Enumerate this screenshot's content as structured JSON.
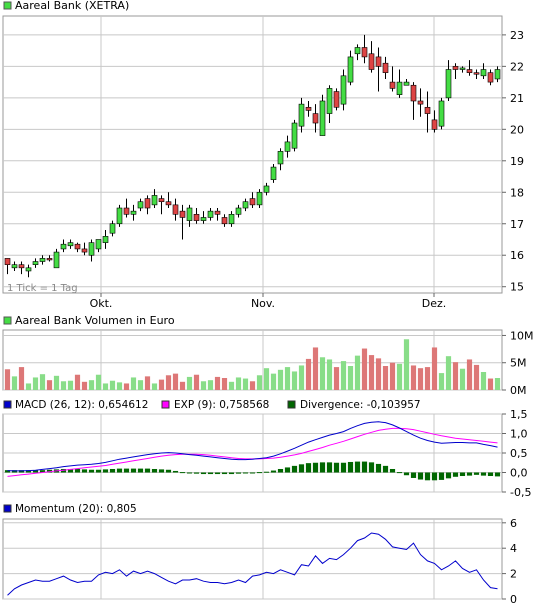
{
  "colors": {
    "up": "#44dd44",
    "down": "#dd4444",
    "grid": "#c8c8c8",
    "macd": "#0000cc",
    "signal": "#ff00ff",
    "divergence": "#006600",
    "momentum": "#0000cc"
  },
  "chart_data": [
    {
      "type": "candlestick",
      "legend": "Aareal Bank (XETRA)",
      "footnote": "1 Tick = 1 Tag",
      "ylim": [
        14.8,
        23.6
      ],
      "yticks": [
        "15",
        "16",
        "17",
        "18",
        "19",
        "20",
        "21",
        "22",
        "23"
      ],
      "xticks": [
        "Okt.",
        "Nov.",
        "Dez."
      ],
      "ohlc": [
        [
          15.9,
          15.7,
          15.9,
          15.4
        ],
        [
          15.6,
          15.7,
          15.8,
          15.5
        ],
        [
          15.7,
          15.6,
          15.8,
          15.4
        ],
        [
          15.5,
          15.6,
          15.7,
          15.3
        ],
        [
          15.7,
          15.8,
          15.9,
          15.6
        ],
        [
          15.8,
          15.9,
          16.0,
          15.7
        ],
        [
          15.9,
          15.85,
          16.0,
          15.8
        ],
        [
          15.6,
          16.1,
          16.2,
          15.6
        ],
        [
          16.2,
          16.35,
          16.5,
          16.1
        ],
        [
          16.3,
          16.4,
          16.5,
          16.2
        ],
        [
          16.35,
          16.2,
          16.4,
          16.1
        ],
        [
          16.2,
          16.1,
          16.4,
          16.0
        ],
        [
          16.0,
          16.4,
          16.5,
          15.8
        ],
        [
          16.2,
          16.5,
          16.5,
          16.1
        ],
        [
          16.4,
          16.6,
          16.8,
          16.2
        ],
        [
          16.7,
          17.0,
          17.1,
          16.6
        ],
        [
          17.0,
          17.5,
          17.6,
          16.9
        ],
        [
          17.5,
          17.3,
          17.8,
          17.2
        ],
        [
          17.3,
          17.4,
          17.6,
          17.1
        ],
        [
          17.5,
          17.7,
          17.8,
          17.4
        ],
        [
          17.8,
          17.5,
          17.9,
          17.3
        ],
        [
          17.6,
          17.9,
          18.1,
          17.5
        ],
        [
          17.8,
          17.7,
          17.9,
          17.3
        ],
        [
          17.7,
          17.6,
          18.0,
          17.5
        ],
        [
          17.6,
          17.3,
          17.8,
          17.1
        ],
        [
          17.4,
          17.2,
          17.6,
          16.5
        ],
        [
          17.1,
          17.5,
          17.6,
          16.9
        ],
        [
          17.3,
          17.1,
          17.5,
          17.0
        ],
        [
          17.1,
          17.2,
          17.4,
          17.0
        ],
        [
          17.2,
          17.4,
          17.5,
          17.1
        ],
        [
          17.4,
          17.3,
          17.5,
          17.1
        ],
        [
          17.2,
          17.0,
          17.3,
          16.9
        ],
        [
          17.0,
          17.3,
          17.4,
          16.9
        ],
        [
          17.3,
          17.5,
          17.6,
          17.2
        ],
        [
          17.5,
          17.7,
          17.8,
          17.4
        ],
        [
          17.8,
          17.6,
          18.0,
          17.5
        ],
        [
          17.6,
          18.0,
          18.1,
          17.5
        ],
        [
          18.0,
          18.2,
          18.3,
          17.9
        ],
        [
          18.4,
          18.8,
          18.9,
          18.3
        ],
        [
          18.9,
          19.3,
          19.4,
          18.7
        ],
        [
          19.3,
          19.6,
          19.8,
          19.1
        ],
        [
          19.4,
          20.2,
          20.3,
          19.3
        ],
        [
          20.1,
          20.8,
          21.0,
          19.9
        ],
        [
          20.7,
          20.6,
          20.9,
          20.4
        ],
        [
          20.5,
          20.2,
          20.8,
          19.9
        ],
        [
          19.8,
          20.9,
          21.1,
          19.8
        ],
        [
          20.5,
          21.3,
          21.4,
          20.2
        ],
        [
          21.2,
          20.7,
          21.3,
          20.6
        ],
        [
          20.8,
          21.7,
          21.9,
          20.6
        ],
        [
          21.5,
          22.3,
          22.5,
          21.4
        ],
        [
          22.4,
          22.6,
          22.7,
          22.2
        ],
        [
          22.6,
          22.3,
          23.0,
          22.1
        ],
        [
          22.4,
          21.9,
          22.8,
          21.8
        ],
        [
          22.3,
          22.0,
          22.6,
          21.2
        ],
        [
          22.1,
          21.8,
          22.3,
          21.6
        ],
        [
          21.5,
          21.3,
          22.0,
          21.2
        ],
        [
          21.1,
          21.5,
          21.9,
          21.0
        ],
        [
          21.4,
          21.5,
          21.6,
          21.4
        ],
        [
          21.4,
          20.9,
          21.5,
          20.3
        ],
        [
          20.9,
          20.8,
          21.3,
          20.4
        ],
        [
          20.7,
          20.5,
          21.2,
          19.9
        ],
        [
          20.3,
          20.0,
          20.6,
          19.9
        ],
        [
          20.1,
          20.9,
          21.0,
          20.0
        ],
        [
          21.0,
          21.9,
          22.2,
          20.9
        ],
        [
          22.0,
          21.9,
          22.1,
          21.6
        ],
        [
          21.9,
          21.95,
          22.0,
          21.8
        ],
        [
          21.9,
          21.8,
          22.2,
          21.7
        ],
        [
          21.8,
          21.75,
          21.9,
          21.6
        ],
        [
          21.7,
          21.9,
          22.1,
          21.6
        ],
        [
          21.8,
          21.5,
          21.9,
          21.4
        ],
        [
          21.6,
          21.9,
          22.0,
          21.5
        ]
      ]
    },
    {
      "type": "bar",
      "legend": "Aareal Bank Volumen in Euro",
      "ylim": [
        0,
        11
      ],
      "yticks": [
        "10M",
        "5M",
        "0M"
      ],
      "ytick_values": [
        10,
        5,
        0
      ],
      "values_millions": [
        3.8,
        2.5,
        4.2,
        1.2,
        2.3,
        2.9,
        1.8,
        2.6,
        1.6,
        1.7,
        2.8,
        1.5,
        1.8,
        2.8,
        1.2,
        1.7,
        1.4,
        1.2,
        2.3,
        1.8,
        2.5,
        1.2,
        1.9,
        2.7,
        3.0,
        1.5,
        2.4,
        2.8,
        1.6,
        1.8,
        2.4,
        2.2,
        1.5,
        2.3,
        2.1,
        1.6,
        2.7,
        4.0,
        3.0,
        3.7,
        4.2,
        3.4,
        4.5,
        5.7,
        7.8,
        6.0,
        5.6,
        4.2,
        5.3,
        4.4,
        6.3,
        7.6,
        6.4,
        5.8,
        4.4,
        5.0,
        4.8,
        9.3,
        4.5,
        4.0,
        4.2,
        7.8,
        3.1,
        6.2,
        5.1,
        3.9,
        5.6,
        4.6,
        3.3,
        2.1,
        2.2
      ]
    },
    {
      "type": "line",
      "series": [
        {
          "name": "MACD (26, 12): 0,654612"
        },
        {
          "name": "EXP (9): 0,758568"
        },
        {
          "name": "Divergence: -0,103957"
        }
      ],
      "ylim": [
        -0.5,
        1.5
      ],
      "yticks": [
        "1,5",
        "1,0",
        "0,5",
        "0,0",
        "-0,5"
      ],
      "ytick_values": [
        1.5,
        1.0,
        0.5,
        0.0,
        -0.5
      ],
      "macd": [
        0.05,
        0.04,
        0.04,
        0.05,
        0.06,
        0.08,
        0.1,
        0.12,
        0.15,
        0.17,
        0.19,
        0.2,
        0.21,
        0.23,
        0.26,
        0.3,
        0.34,
        0.37,
        0.4,
        0.43,
        0.46,
        0.48,
        0.5,
        0.51,
        0.5,
        0.48,
        0.46,
        0.44,
        0.42,
        0.4,
        0.38,
        0.36,
        0.34,
        0.33,
        0.33,
        0.34,
        0.36,
        0.38,
        0.42,
        0.48,
        0.55,
        0.62,
        0.7,
        0.78,
        0.84,
        0.9,
        0.96,
        1.0,
        1.05,
        1.13,
        1.2,
        1.26,
        1.29,
        1.3,
        1.28,
        1.22,
        1.14,
        1.05,
        0.96,
        0.88,
        0.82,
        0.78,
        0.75,
        0.76,
        0.77,
        0.77,
        0.76,
        0.76,
        0.72,
        0.69,
        0.65
      ],
      "signal": [
        -0.1,
        -0.08,
        -0.06,
        -0.04,
        -0.02,
        0.0,
        0.02,
        0.04,
        0.06,
        0.08,
        0.1,
        0.12,
        0.14,
        0.16,
        0.18,
        0.21,
        0.24,
        0.27,
        0.3,
        0.33,
        0.36,
        0.39,
        0.42,
        0.44,
        0.46,
        0.47,
        0.47,
        0.47,
        0.46,
        0.44,
        0.42,
        0.4,
        0.38,
        0.36,
        0.35,
        0.35,
        0.35,
        0.36,
        0.37,
        0.39,
        0.42,
        0.45,
        0.49,
        0.54,
        0.59,
        0.64,
        0.7,
        0.75,
        0.8,
        0.86,
        0.92,
        0.98,
        1.03,
        1.08,
        1.11,
        1.13,
        1.13,
        1.12,
        1.1,
        1.06,
        1.02,
        0.98,
        0.94,
        0.91,
        0.88,
        0.86,
        0.84,
        0.82,
        0.8,
        0.78,
        0.76
      ],
      "divergence": [
        0.06,
        0.06,
        0.06,
        0.06,
        0.06,
        0.06,
        0.07,
        0.08,
        0.09,
        0.09,
        0.09,
        0.08,
        0.07,
        0.07,
        0.08,
        0.09,
        0.1,
        0.1,
        0.1,
        0.1,
        0.1,
        0.09,
        0.08,
        0.07,
        0.04,
        0.01,
        -0.01,
        -0.03,
        -0.04,
        -0.04,
        -0.04,
        -0.04,
        -0.04,
        -0.03,
        -0.02,
        -0.01,
        0.01,
        0.02,
        0.05,
        0.09,
        0.13,
        0.17,
        0.21,
        0.24,
        0.25,
        0.26,
        0.26,
        0.25,
        0.25,
        0.27,
        0.28,
        0.28,
        0.26,
        0.22,
        0.17,
        0.09,
        0.01,
        -0.07,
        -0.14,
        -0.18,
        -0.2,
        -0.2,
        -0.19,
        -0.15,
        -0.11,
        -0.09,
        -0.08,
        -0.06,
        -0.08,
        -0.09,
        -0.1
      ]
    },
    {
      "type": "line",
      "series": [
        {
          "name": "Momentum (20): 0,805"
        }
      ],
      "ylim": [
        0,
        6.3
      ],
      "yticks": [
        "6",
        "4",
        "2",
        "0"
      ],
      "ytick_values": [
        6,
        4,
        2,
        0
      ],
      "values": [
        0.3,
        0.8,
        1.1,
        1.3,
        1.5,
        1.4,
        1.4,
        1.6,
        1.8,
        1.5,
        1.3,
        1.4,
        1.4,
        1.9,
        2.1,
        2.0,
        2.3,
        1.8,
        2.2,
        2.0,
        2.2,
        2.0,
        1.7,
        1.4,
        1.2,
        1.5,
        1.5,
        1.6,
        1.4,
        1.3,
        1.3,
        1.2,
        1.3,
        1.5,
        1.3,
        1.8,
        1.9,
        2.1,
        2.0,
        2.3,
        2.1,
        1.9,
        2.7,
        2.6,
        3.4,
        2.8,
        3.2,
        3.1,
        3.5,
        4.0,
        4.6,
        4.8,
        5.2,
        5.1,
        4.7,
        4.1,
        4.0,
        3.9,
        4.4,
        3.5,
        3.0,
        2.8,
        2.3,
        2.6,
        3.0,
        2.4,
        2.1,
        2.3,
        1.5,
        0.9,
        0.8
      ]
    }
  ]
}
